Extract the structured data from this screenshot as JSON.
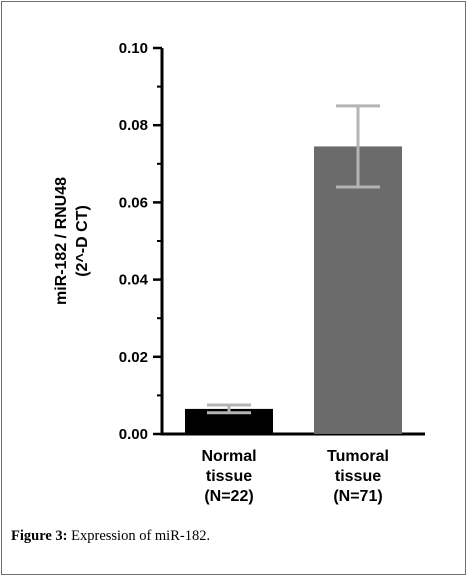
{
  "chart_data": {
    "type": "bar",
    "categories": [
      [
        "Normal",
        "tissue",
        "(N=22)"
      ],
      [
        "Tumoral",
        "tissue",
        "(N=71)"
      ]
    ],
    "values": [
      0.0065,
      0.0745
    ],
    "error_bars": [
      {
        "low": 0.0055,
        "high": 0.0075
      },
      {
        "low": 0.064,
        "high": 0.085
      }
    ],
    "bar_colors": [
      "#000000",
      "#6b6b6b"
    ],
    "error_bar_colors": [
      "#b4b4b4",
      "#b4b4b4"
    ],
    "ylabel": [
      "miR-182 / RNU48",
      "(2^-D CT)"
    ],
    "ylim": [
      0,
      0.1
    ],
    "yticks": [
      "0.00",
      "0.02",
      "0.04",
      "0.06",
      "0.08",
      "0.10"
    ],
    "ytick_values": [
      0,
      0.02,
      0.04,
      0.06,
      0.08,
      0.1
    ],
    "minor_ticks": true,
    "grid": false
  },
  "caption": {
    "label": "Figure 3:",
    "text": "Expression of miR-182."
  }
}
